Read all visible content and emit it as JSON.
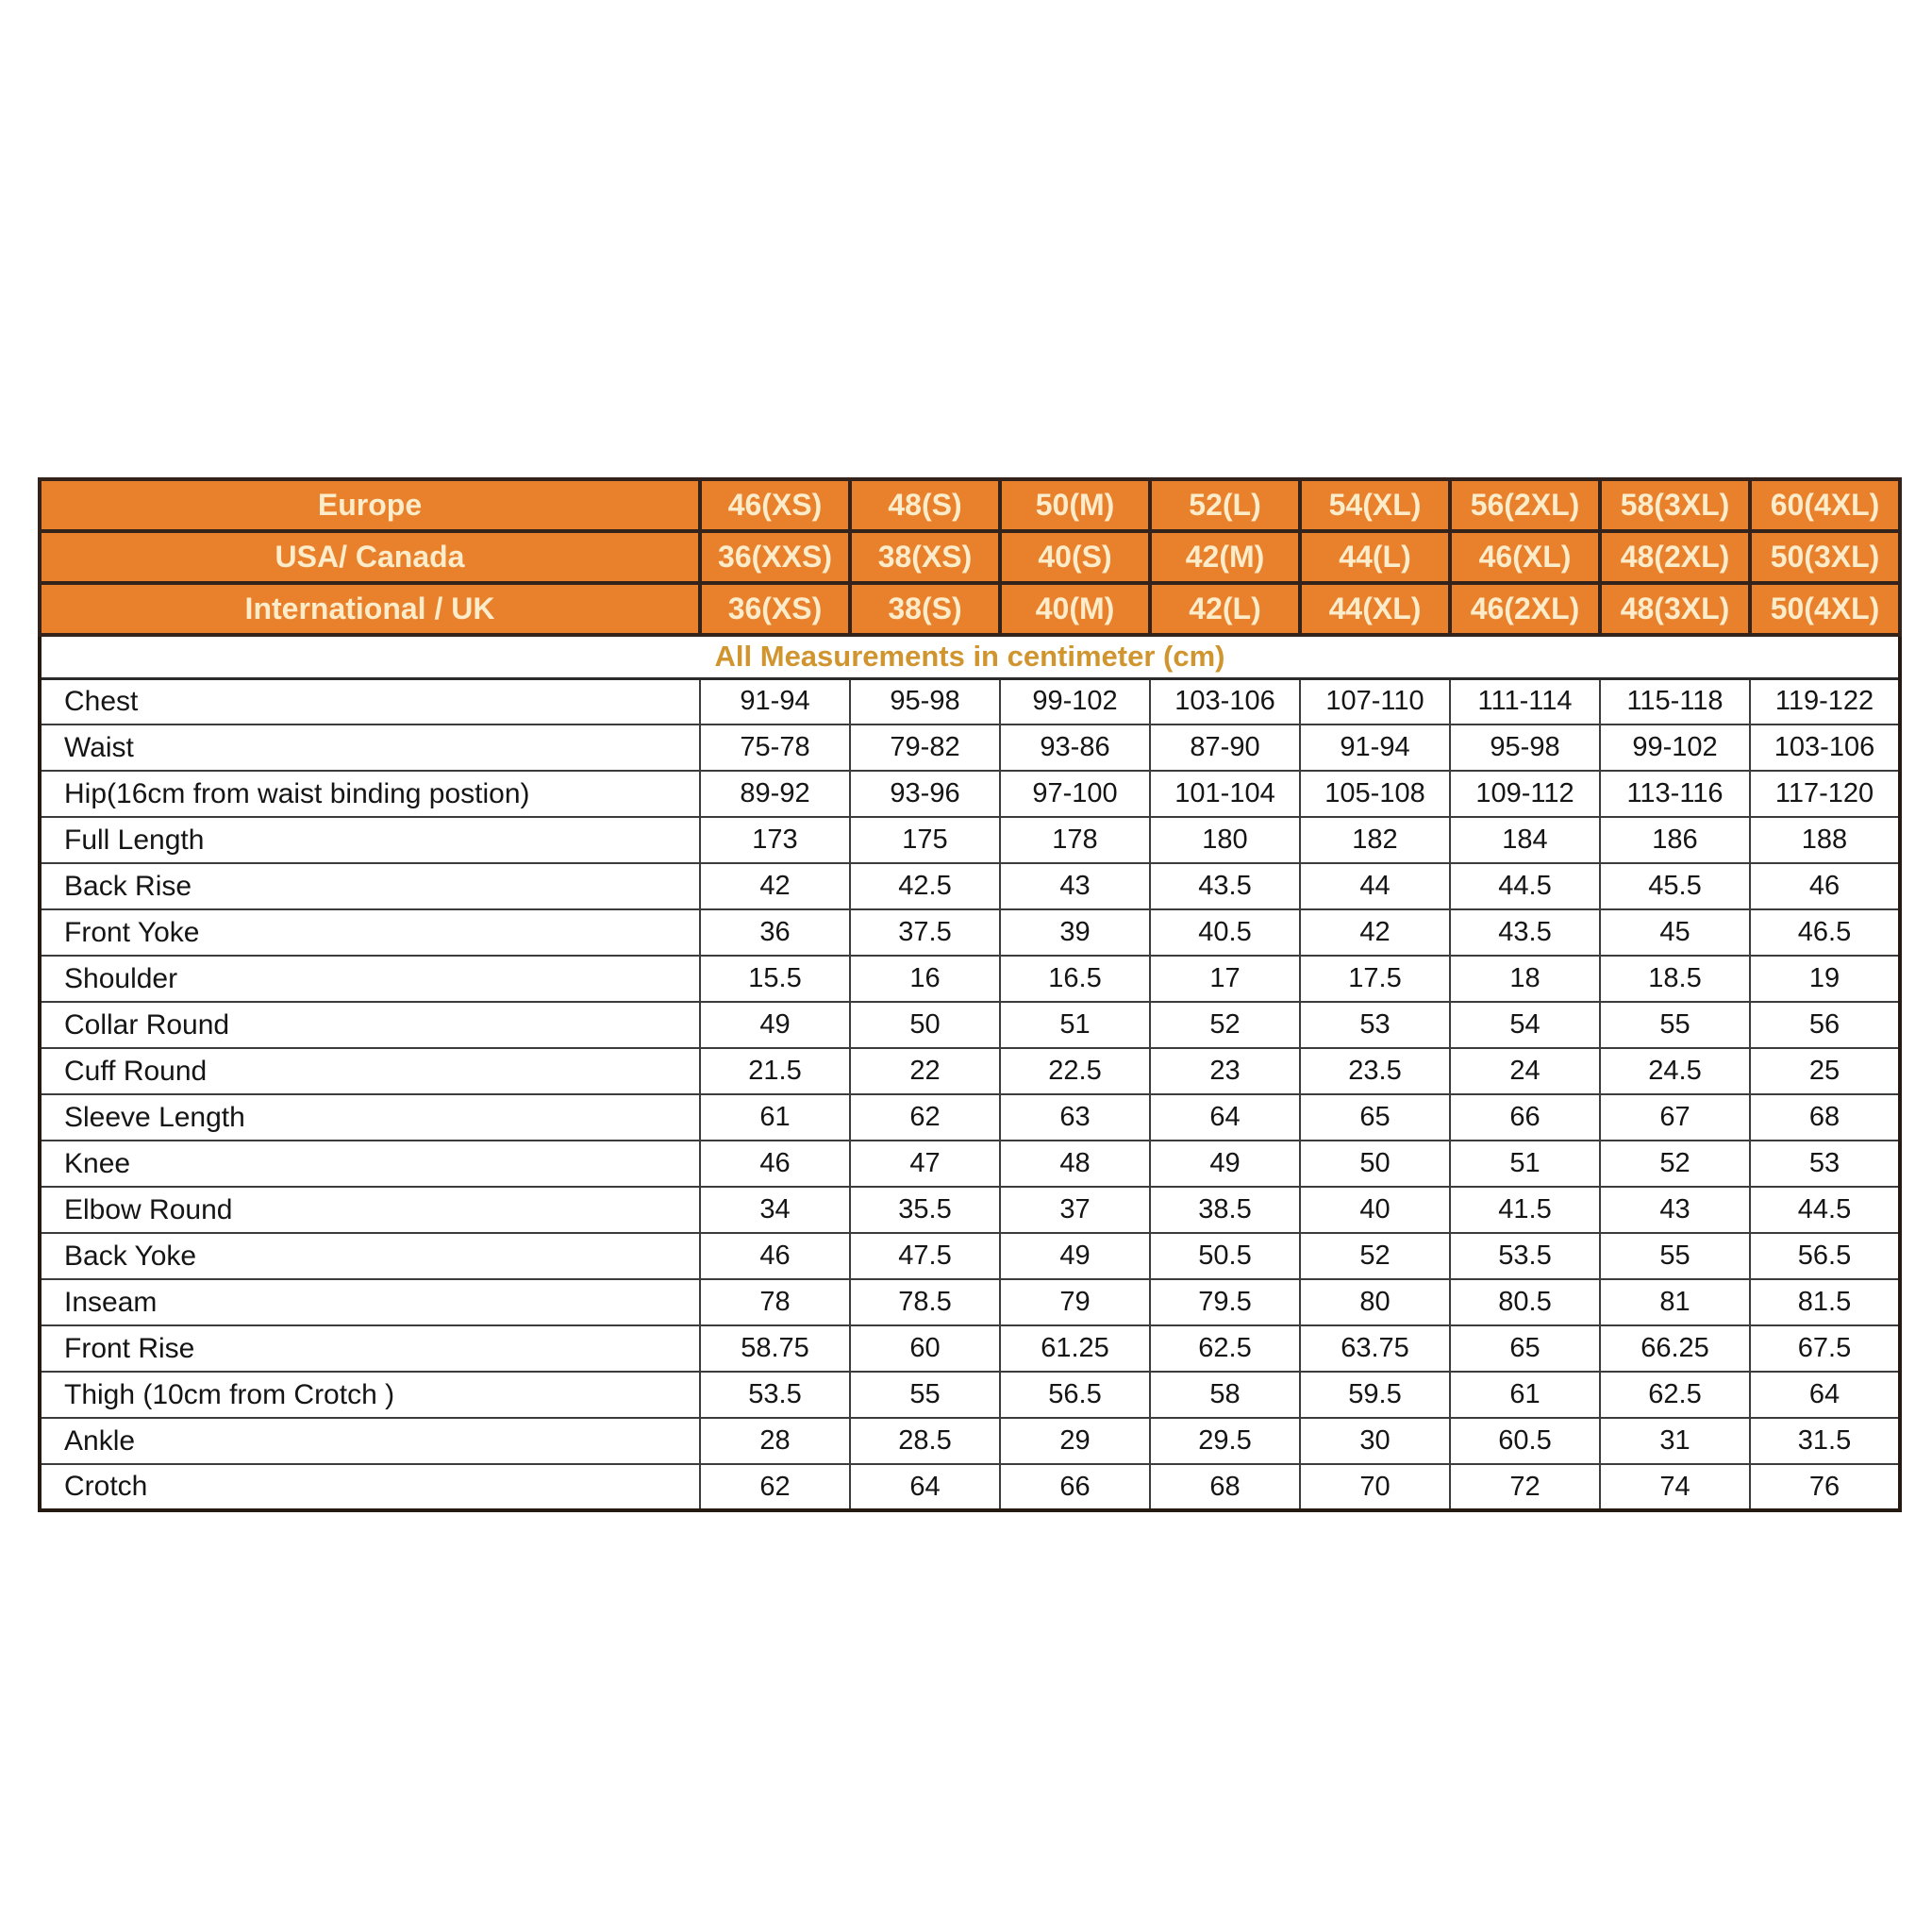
{
  "table": {
    "note": "All Measurements in centimeter (cm)",
    "header_rows": [
      {
        "label": "Europe",
        "sizes": [
          "46(XS)",
          "48(S)",
          "50(M)",
          "52(L)",
          "54(XL)",
          "56(2XL)",
          "58(3XL)",
          "60(4XL)"
        ]
      },
      {
        "label": "USA/ Canada",
        "sizes": [
          "36(XXS)",
          "38(XS)",
          "40(S)",
          "42(M)",
          "44(L)",
          "46(XL)",
          "48(2XL)",
          "50(3XL)"
        ]
      },
      {
        "label": "International / UK",
        "sizes": [
          "36(XS)",
          "38(S)",
          "40(M)",
          "42(L)",
          "44(XL)",
          "46(2XL)",
          "48(3XL)",
          "50(4XL)"
        ]
      }
    ],
    "rows": [
      {
        "label": "Chest",
        "values": [
          "91-94",
          "95-98",
          "99-102",
          "103-106",
          "107-110",
          "111-114",
          "115-118",
          "119-122"
        ]
      },
      {
        "label": "Waist",
        "values": [
          "75-78",
          "79-82",
          "93-86",
          "87-90",
          "91-94",
          "95-98",
          "99-102",
          "103-106"
        ]
      },
      {
        "label": "Hip(16cm from waist binding postion)",
        "values": [
          "89-92",
          "93-96",
          "97-100",
          "101-104",
          "105-108",
          "109-112",
          "113-116",
          "117-120"
        ]
      },
      {
        "label": "Full Length",
        "values": [
          "173",
          "175",
          "178",
          "180",
          "182",
          "184",
          "186",
          "188"
        ]
      },
      {
        "label": "Back Rise",
        "values": [
          "42",
          "42.5",
          "43",
          "43.5",
          "44",
          "44.5",
          "45.5",
          "46"
        ]
      },
      {
        "label": "Front Yoke",
        "values": [
          "36",
          "37.5",
          "39",
          "40.5",
          "42",
          "43.5",
          "45",
          "46.5"
        ]
      },
      {
        "label": "Shoulder",
        "values": [
          "15.5",
          "16",
          "16.5",
          "17",
          "17.5",
          "18",
          "18.5",
          "19"
        ]
      },
      {
        "label": "Collar Round",
        "values": [
          "49",
          "50",
          "51",
          "52",
          "53",
          "54",
          "55",
          "56"
        ]
      },
      {
        "label": "Cuff Round",
        "values": [
          "21.5",
          "22",
          "22.5",
          "23",
          "23.5",
          "24",
          "24.5",
          "25"
        ]
      },
      {
        "label": "Sleeve Length",
        "values": [
          "61",
          "62",
          "63",
          "64",
          "65",
          "66",
          "67",
          "68"
        ]
      },
      {
        "label": "Knee",
        "values": [
          "46",
          "47",
          "48",
          "49",
          "50",
          "51",
          "52",
          "53"
        ]
      },
      {
        "label": "Elbow Round",
        "values": [
          "34",
          "35.5",
          "37",
          "38.5",
          "40",
          "41.5",
          "43",
          "44.5"
        ]
      },
      {
        "label": "Back Yoke",
        "values": [
          "46",
          "47.5",
          "49",
          "50.5",
          "52",
          "53.5",
          "55",
          "56.5"
        ]
      },
      {
        "label": "Inseam",
        "values": [
          "78",
          "78.5",
          "79",
          "79.5",
          "80",
          "80.5",
          "81",
          "81.5"
        ]
      },
      {
        "label": "Front Rise",
        "values": [
          "58.75",
          "60",
          "61.25",
          "62.5",
          "63.75",
          "65",
          "66.25",
          "67.5"
        ]
      },
      {
        "label": "Thigh (10cm from Crotch )",
        "values": [
          "53.5",
          "55",
          "56.5",
          "58",
          "59.5",
          "61",
          "62.5",
          "64"
        ]
      },
      {
        "label": "Ankle",
        "values": [
          "28",
          "28.5",
          "29",
          "29.5",
          "30",
          "60.5",
          "31",
          "31.5"
        ]
      },
      {
        "label": "Crotch",
        "values": [
          "62",
          "64",
          "66",
          "68",
          "70",
          "72",
          "74",
          "76"
        ]
      }
    ],
    "colors": {
      "header_bg": "#e8802c",
      "header_text": "#fcecca",
      "note_text": "#d0952e"
    }
  }
}
